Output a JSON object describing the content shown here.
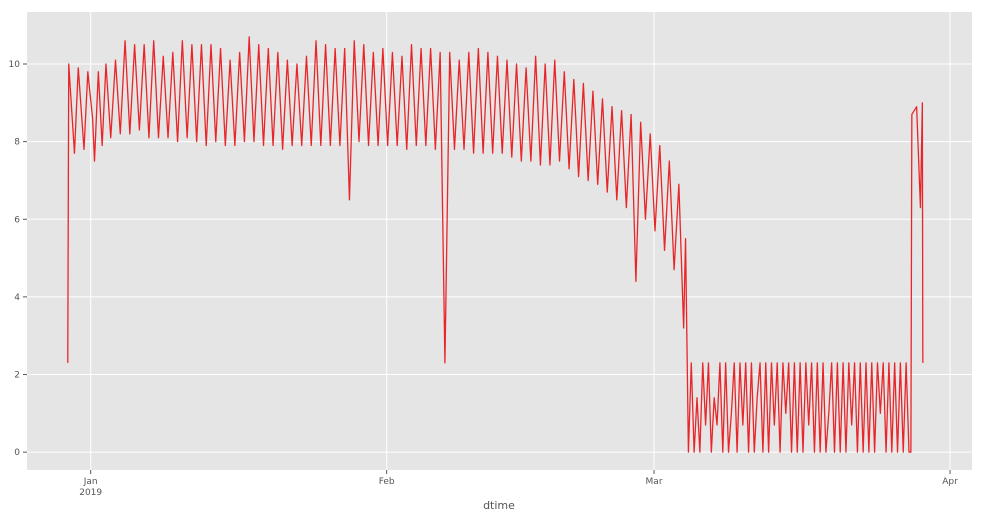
{
  "chart_data": {
    "type": "line",
    "xlabel": "dtime",
    "color": "#e8262a",
    "grid": true,
    "xlim": [
      -6.67,
      92.3
    ],
    "ylim": [
      -0.46,
      11.34
    ],
    "xticks": [
      {
        "value": 0,
        "label": "Jan\n2019"
      },
      {
        "value": 31,
        "label": "Feb"
      },
      {
        "value": 59,
        "label": "Mar"
      },
      {
        "value": 90,
        "label": "Apr"
      }
    ],
    "yticks": [
      0,
      2,
      4,
      6,
      8,
      10
    ],
    "x": [
      -2.4,
      -2.3,
      -1.7,
      -1.3,
      -0.7,
      -0.3,
      0.2,
      0.4,
      0.8,
      1.2,
      1.6,
      2.1,
      2.6,
      3.1,
      3.6,
      4.1,
      4.6,
      5.1,
      5.6,
      6.1,
      6.6,
      7.1,
      7.6,
      8.1,
      8.6,
      9.1,
      9.6,
      10.1,
      10.6,
      11.1,
      11.6,
      12.1,
      12.6,
      13.1,
      13.6,
      14.1,
      14.6,
      15.1,
      15.6,
      16.1,
      16.6,
      17.1,
      17.6,
      18.1,
      18.6,
      19.1,
      19.6,
      20.1,
      20.6,
      21.1,
      21.6,
      22.1,
      22.6,
      23.1,
      23.6,
      24.1,
      24.6,
      25.1,
      25.6,
      26.1,
      26.6,
      27.1,
      27.6,
      28.1,
      28.6,
      29.1,
      29.6,
      30.1,
      30.6,
      31.1,
      31.6,
      32.1,
      32.6,
      33.1,
      33.6,
      34.1,
      34.6,
      35.1,
      35.6,
      36.1,
      36.6,
      37.1,
      37.6,
      38.1,
      38.6,
      39.1,
      39.6,
      40.1,
      40.6,
      41.1,
      41.6,
      42.1,
      42.6,
      43.1,
      43.6,
      44.1,
      44.6,
      45.1,
      45.6,
      46.1,
      46.6,
      47.1,
      47.6,
      48.1,
      48.6,
      49.1,
      49.6,
      50.1,
      50.6,
      51.1,
      51.6,
      52.1,
      52.6,
      53.1,
      53.6,
      54.1,
      54.6,
      55.1,
      55.6,
      56.1,
      56.6,
      57.1,
      57.6,
      58.1,
      58.6,
      59.1,
      59.6,
      60.1,
      60.6,
      61.1,
      61.6,
      62.1,
      62.3,
      62.6,
      62.9,
      63.2,
      63.5,
      63.8,
      64.1,
      64.4,
      64.7,
      65.0,
      65.3,
      65.6,
      65.9,
      66.2,
      66.5,
      66.8,
      67.1,
      67.4,
      67.7,
      68.0,
      68.3,
      68.6,
      68.9,
      69.2,
      69.5,
      69.8,
      70.1,
      70.4,
      70.7,
      71.0,
      71.3,
      71.6,
      71.9,
      72.2,
      72.5,
      72.8,
      73.1,
      73.4,
      73.7,
      74.0,
      74.3,
      74.6,
      74.9,
      75.2,
      75.5,
      75.8,
      76.1,
      76.4,
      76.7,
      77.0,
      77.3,
      77.6,
      77.9,
      78.2,
      78.5,
      78.8,
      79.1,
      79.4,
      79.7,
      80.0,
      80.3,
      80.6,
      80.9,
      81.2,
      81.5,
      81.8,
      82.1,
      82.4,
      82.7,
      83.0,
      83.3,
      83.6,
      83.9,
      84.2,
      84.5,
      84.8,
      85.1,
      85.4,
      85.7,
      85.9,
      86.0,
      86.5,
      86.9,
      87.1,
      87.15
    ],
    "values": [
      2.3,
      10.0,
      7.7,
      9.9,
      7.8,
      9.8,
      8.6,
      7.5,
      9.8,
      7.9,
      10.0,
      8.1,
      10.1,
      8.2,
      10.6,
      8.2,
      10.5,
      8.3,
      10.5,
      8.1,
      10.6,
      8.1,
      10.2,
      8.1,
      10.3,
      8.0,
      10.6,
      8.1,
      10.5,
      8.0,
      10.5,
      7.9,
      10.5,
      8.0,
      10.4,
      7.9,
      10.1,
      7.9,
      10.3,
      8.0,
      10.7,
      8.0,
      10.5,
      7.9,
      10.4,
      7.9,
      10.3,
      7.8,
      10.1,
      7.9,
      10.0,
      7.9,
      10.2,
      7.9,
      10.6,
      7.9,
      10.5,
      7.9,
      10.4,
      7.9,
      10.4,
      6.5,
      10.6,
      8.0,
      10.5,
      7.9,
      10.3,
      7.9,
      10.4,
      7.9,
      10.3,
      7.9,
      10.2,
      7.8,
      10.5,
      7.9,
      10.4,
      7.9,
      10.4,
      7.8,
      10.3,
      2.3,
      10.3,
      7.8,
      10.1,
      7.8,
      10.3,
      7.7,
      10.4,
      7.7,
      10.3,
      7.7,
      10.2,
      7.7,
      10.1,
      7.6,
      10.0,
      7.5,
      9.9,
      7.5,
      10.2,
      7.4,
      10.0,
      7.4,
      10.1,
      7.5,
      9.8,
      7.3,
      9.6,
      7.1,
      9.5,
      7.0,
      9.3,
      6.9,
      9.1,
      6.7,
      8.9,
      6.5,
      8.8,
      6.3,
      8.7,
      4.4,
      8.5,
      6.0,
      8.2,
      5.7,
      7.9,
      5.2,
      7.5,
      4.7,
      6.9,
      3.2,
      5.5,
      0,
      2.3,
      0,
      1.4,
      0,
      2.3,
      0.7,
      2.3,
      0,
      1.4,
      0.7,
      2.3,
      0,
      2.3,
      0,
      1.0,
      2.3,
      0,
      2.3,
      0.7,
      2.3,
      0,
      2.3,
      0,
      1.4,
      2.3,
      0,
      2.3,
      0,
      2.3,
      0.7,
      2.3,
      0,
      2.3,
      1.0,
      2.3,
      0,
      2.3,
      0,
      2.3,
      0,
      2.3,
      0.7,
      2.3,
      0,
      2.3,
      0,
      2.3,
      0,
      1.0,
      2.3,
      0,
      2.3,
      0,
      2.3,
      0,
      2.3,
      0.7,
      2.3,
      0,
      2.3,
      0,
      2.3,
      0,
      2.3,
      0,
      2.3,
      1.0,
      2.3,
      0,
      2.3,
      0,
      2.3,
      0,
      2.3,
      0,
      2.3,
      0,
      0,
      8.7,
      8.9,
      6.3,
      9.0,
      2.3
    ]
  }
}
